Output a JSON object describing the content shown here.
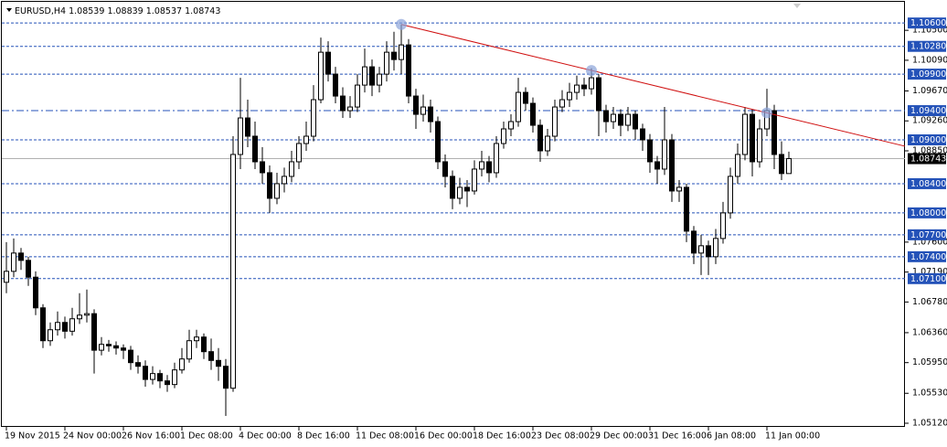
{
  "chart_data": {
    "type": "candlestick",
    "symbol": "EURUSD,H4",
    "ylim": [
      1.0507,
      1.1089
    ],
    "yticks": [
      {
        "value": 1.105,
        "label": "1.10500"
      },
      {
        "value": 1.1009,
        "label": "1.10090"
      },
      {
        "value": 1.0967,
        "label": "1.09670"
      },
      {
        "value": 1.0926,
        "label": "1.09260"
      },
      {
        "value": 1.0885,
        "label": "1.08850"
      },
      {
        "value": 1.076,
        "label": "1.07600"
      },
      {
        "value": 1.0719,
        "label": "1.07190"
      },
      {
        "value": 1.0678,
        "label": "1.06780"
      },
      {
        "value": 1.0636,
        "label": "1.06360"
      },
      {
        "value": 1.0595,
        "label": "1.05950"
      },
      {
        "value": 1.0553,
        "label": "1.05530"
      },
      {
        "value": 1.0512,
        "label": "1.05120"
      }
    ],
    "xticks": [
      {
        "value": 0,
        "label": "19 Nov 2015"
      },
      {
        "value": 8,
        "label": "24 Nov 00:00"
      },
      {
        "value": 16,
        "label": "26 Nov 16:00"
      },
      {
        "value": 24,
        "label": "1 Dec 08:00"
      },
      {
        "value": 32,
        "label": "4 Dec 00:00"
      },
      {
        "value": 40,
        "label": "8 Dec 16:00"
      },
      {
        "value": 48,
        "label": "11 Dec 08:00"
      },
      {
        "value": 56,
        "label": "16 Dec 00:00"
      },
      {
        "value": 64,
        "label": "18 Dec 16:00"
      },
      {
        "value": 72,
        "label": "23 Dec 08:00"
      },
      {
        "value": 80,
        "label": "29 Dec 00:00"
      },
      {
        "value": 88,
        "label": "31 Dec 16:00"
      },
      {
        "value": 96,
        "label": "6 Jan 08:00"
      },
      {
        "value": 104,
        "label": "11 Jan 00:00"
      }
    ],
    "levels": [
      {
        "value": 1.106,
        "label": "1.10600"
      },
      {
        "value": 1.1028,
        "label": "1.10280"
      },
      {
        "value": 1.099,
        "label": "1.09900"
      },
      {
        "value": 1.094,
        "label": "1.09400",
        "style": "dashdot"
      },
      {
        "value": 1.09,
        "label": "1.09000"
      },
      {
        "value": 1.084,
        "label": "1.08400"
      },
      {
        "value": 1.08,
        "label": "1.08000"
      },
      {
        "value": 1.077,
        "label": "1.07700"
      },
      {
        "value": 1.074,
        "label": "1.07400"
      },
      {
        "value": 1.071,
        "label": "1.07100"
      }
    ],
    "level_color": "#2452b8",
    "trendline": {
      "color": "#d01010",
      "points": [
        {
          "x": 54,
          "y": 1.1058
        },
        {
          "x": 80,
          "y": 1.0995
        },
        {
          "x": 104,
          "y": 1.0937
        }
      ]
    },
    "ohlc": [
      [
        1.0705,
        1.076,
        1.069,
        1.072
      ],
      [
        1.072,
        1.0765,
        1.0712,
        1.0745
      ],
      [
        1.0745,
        1.0752,
        1.0722,
        1.0735
      ],
      [
        1.0735,
        1.074,
        1.07,
        1.0712
      ],
      [
        1.0712,
        1.072,
        1.066,
        1.067
      ],
      [
        1.067,
        1.0675,
        1.0615,
        1.0625
      ],
      [
        1.0625,
        1.065,
        1.0618,
        1.064
      ],
      [
        1.064,
        1.0665,
        1.0632,
        1.065
      ],
      [
        1.065,
        1.0658,
        1.0628,
        1.0638
      ],
      [
        1.0638,
        1.067,
        1.0632,
        1.0655
      ],
      [
        1.0655,
        1.069,
        1.0648,
        1.066
      ],
      [
        1.066,
        1.0695,
        1.065,
        1.0662
      ],
      [
        1.0662,
        1.0668,
        1.058,
        1.0612
      ],
      [
        1.0612,
        1.063,
        1.0605,
        1.062
      ],
      [
        1.062,
        1.0626,
        1.061,
        1.0618
      ],
      [
        1.0618,
        1.0624,
        1.0606,
        1.0615
      ],
      [
        1.0615,
        1.062,
        1.06,
        1.0612
      ],
      [
        1.0612,
        1.0618,
        1.0585,
        1.0595
      ],
      [
        1.0595,
        1.0605,
        1.058,
        1.059
      ],
      [
        1.059,
        1.0598,
        1.0562,
        1.0572
      ],
      [
        1.0572,
        1.059,
        1.0565,
        1.058
      ],
      [
        1.058,
        1.0585,
        1.056,
        1.057
      ],
      [
        1.057,
        1.0578,
        1.0555,
        1.0565
      ],
      [
        1.0565,
        1.0595,
        1.056,
        1.0585
      ],
      [
        1.0585,
        1.0615,
        1.058,
        1.06
      ],
      [
        1.06,
        1.064,
        1.0595,
        1.0625
      ],
      [
        1.0625,
        1.064,
        1.0615,
        1.063
      ],
      [
        1.063,
        1.0635,
        1.06,
        1.061
      ],
      [
        1.061,
        1.0628,
        1.0585,
        1.0598
      ],
      [
        1.0598,
        1.0615,
        1.057,
        1.059
      ],
      [
        1.059,
        1.06,
        1.0522,
        1.056
      ],
      [
        1.056,
        1.0905,
        1.0555,
        1.088
      ],
      [
        1.088,
        1.0985,
        1.086,
        1.093
      ],
      [
        1.093,
        1.0955,
        1.089,
        1.0905
      ],
      [
        1.0905,
        1.0925,
        1.086,
        1.087
      ],
      [
        1.087,
        1.089,
        1.084,
        1.0855
      ],
      [
        1.0855,
        1.0865,
        1.08,
        1.082
      ],
      [
        1.082,
        1.0855,
        1.0812,
        1.084
      ],
      [
        1.084,
        1.0862,
        1.0828,
        1.085
      ],
      [
        1.085,
        1.0885,
        1.0842,
        1.087
      ],
      [
        1.087,
        1.0905,
        1.086,
        1.0895
      ],
      [
        1.0895,
        1.0925,
        1.0885,
        1.0905
      ],
      [
        1.0905,
        1.0975,
        1.0898,
        1.0955
      ],
      [
        1.0955,
        1.104,
        1.095,
        1.102
      ],
      [
        1.102,
        1.1035,
        1.098,
        1.099
      ],
      [
        1.099,
        1.1,
        1.095,
        1.096
      ],
      [
        1.096,
        1.0972,
        1.093,
        1.094
      ],
      [
        1.094,
        1.096,
        1.093,
        1.0945
      ],
      [
        1.0945,
        1.099,
        1.0938,
        1.0975
      ],
      [
        1.0975,
        1.1025,
        1.0965,
        1.1
      ],
      [
        1.1,
        1.101,
        1.096,
        1.0975
      ],
      [
        1.0975,
        1.1,
        1.0965,
        1.099
      ],
      [
        1.099,
        1.1035,
        1.098,
        1.102
      ],
      [
        1.102,
        1.1048,
        1.0995,
        1.101
      ],
      [
        1.101,
        1.1058,
        1.099,
        1.103
      ],
      [
        1.103,
        1.1038,
        1.095,
        1.096
      ],
      [
        1.096,
        1.097,
        1.0915,
        1.0935
      ],
      [
        1.0935,
        1.0962,
        1.0925,
        1.0945
      ],
      [
        1.0945,
        1.0955,
        1.091,
        1.0925
      ],
      [
        1.0925,
        1.0932,
        1.086,
        1.087
      ],
      [
        1.087,
        1.088,
        1.0835,
        1.085
      ],
      [
        1.085,
        1.0858,
        1.0805,
        1.082
      ],
      [
        1.082,
        1.0848,
        1.0812,
        1.0835
      ],
      [
        1.0835,
        1.0845,
        1.0808,
        1.083
      ],
      [
        1.083,
        1.0872,
        1.0825,
        1.086
      ],
      [
        1.086,
        1.0885,
        1.085,
        1.087
      ],
      [
        1.087,
        1.0878,
        1.0842,
        1.0855
      ],
      [
        1.0855,
        1.0905,
        1.0848,
        1.0895
      ],
      [
        1.0895,
        1.0925,
        1.0888,
        1.0915
      ],
      [
        1.0915,
        1.0935,
        1.0905,
        1.0925
      ],
      [
        1.0925,
        1.0985,
        1.0918,
        1.0965
      ],
      [
        1.0965,
        1.0972,
        1.094,
        1.095
      ],
      [
        1.095,
        1.0958,
        1.091,
        1.092
      ],
      [
        1.092,
        1.0928,
        1.087,
        1.0885
      ],
      [
        1.0885,
        1.0915,
        1.0878,
        1.0905
      ],
      [
        1.0905,
        1.0955,
        1.0898,
        1.0945
      ],
      [
        1.0945,
        1.0968,
        1.0938,
        1.0955
      ],
      [
        1.0955,
        1.0978,
        1.0945,
        1.0965
      ],
      [
        1.0965,
        1.0988,
        1.0955,
        1.0975
      ],
      [
        1.0975,
        1.0985,
        1.096,
        1.097
      ],
      [
        1.097,
        1.0998,
        1.0962,
        1.0985
      ],
      [
        1.0985,
        1.099,
        1.0905,
        1.094
      ],
      [
        1.094,
        1.0948,
        1.091,
        1.0925
      ],
      [
        1.0925,
        1.0945,
        1.0915,
        1.0935
      ],
      [
        1.0935,
        1.0942,
        1.0905,
        1.092
      ],
      [
        1.092,
        1.0945,
        1.0912,
        1.0935
      ],
      [
        1.0935,
        1.094,
        1.09,
        1.0915
      ],
      [
        1.0915,
        1.0922,
        1.0885,
        1.09
      ],
      [
        1.09,
        1.0908,
        1.0855,
        1.087
      ],
      [
        1.087,
        1.0878,
        1.084,
        1.086
      ],
      [
        1.086,
        1.0945,
        1.0852,
        1.09
      ],
      [
        1.09,
        1.0908,
        1.0815,
        1.083
      ],
      [
        1.083,
        1.0845,
        1.0815,
        1.0835
      ],
      [
        1.0835,
        1.084,
        1.076,
        1.0775
      ],
      [
        1.0775,
        1.0782,
        1.073,
        1.0745
      ],
      [
        1.0745,
        1.077,
        1.0715,
        1.0755
      ],
      [
        1.0755,
        1.0762,
        1.0715,
        1.074
      ],
      [
        1.074,
        1.0778,
        1.073,
        1.0765
      ],
      [
        1.0765,
        1.0815,
        1.0758,
        1.08
      ],
      [
        1.08,
        1.0862,
        1.0792,
        1.085
      ],
      [
        1.085,
        1.0895,
        1.084,
        1.088
      ],
      [
        1.088,
        1.0945,
        1.0872,
        1.0935
      ],
      [
        1.0935,
        1.0942,
        1.085,
        1.087
      ],
      [
        1.087,
        1.0928,
        1.0862,
        1.0915
      ],
      [
        1.0915,
        1.097,
        1.0905,
        1.094
      ],
      [
        1.094,
        1.0948,
        1.086,
        1.088
      ],
      [
        1.088,
        1.0898,
        1.0845,
        1.08539
      ],
      [
        1.08539,
        1.08839,
        1.08537,
        1.08743
      ]
    ]
  }
}
